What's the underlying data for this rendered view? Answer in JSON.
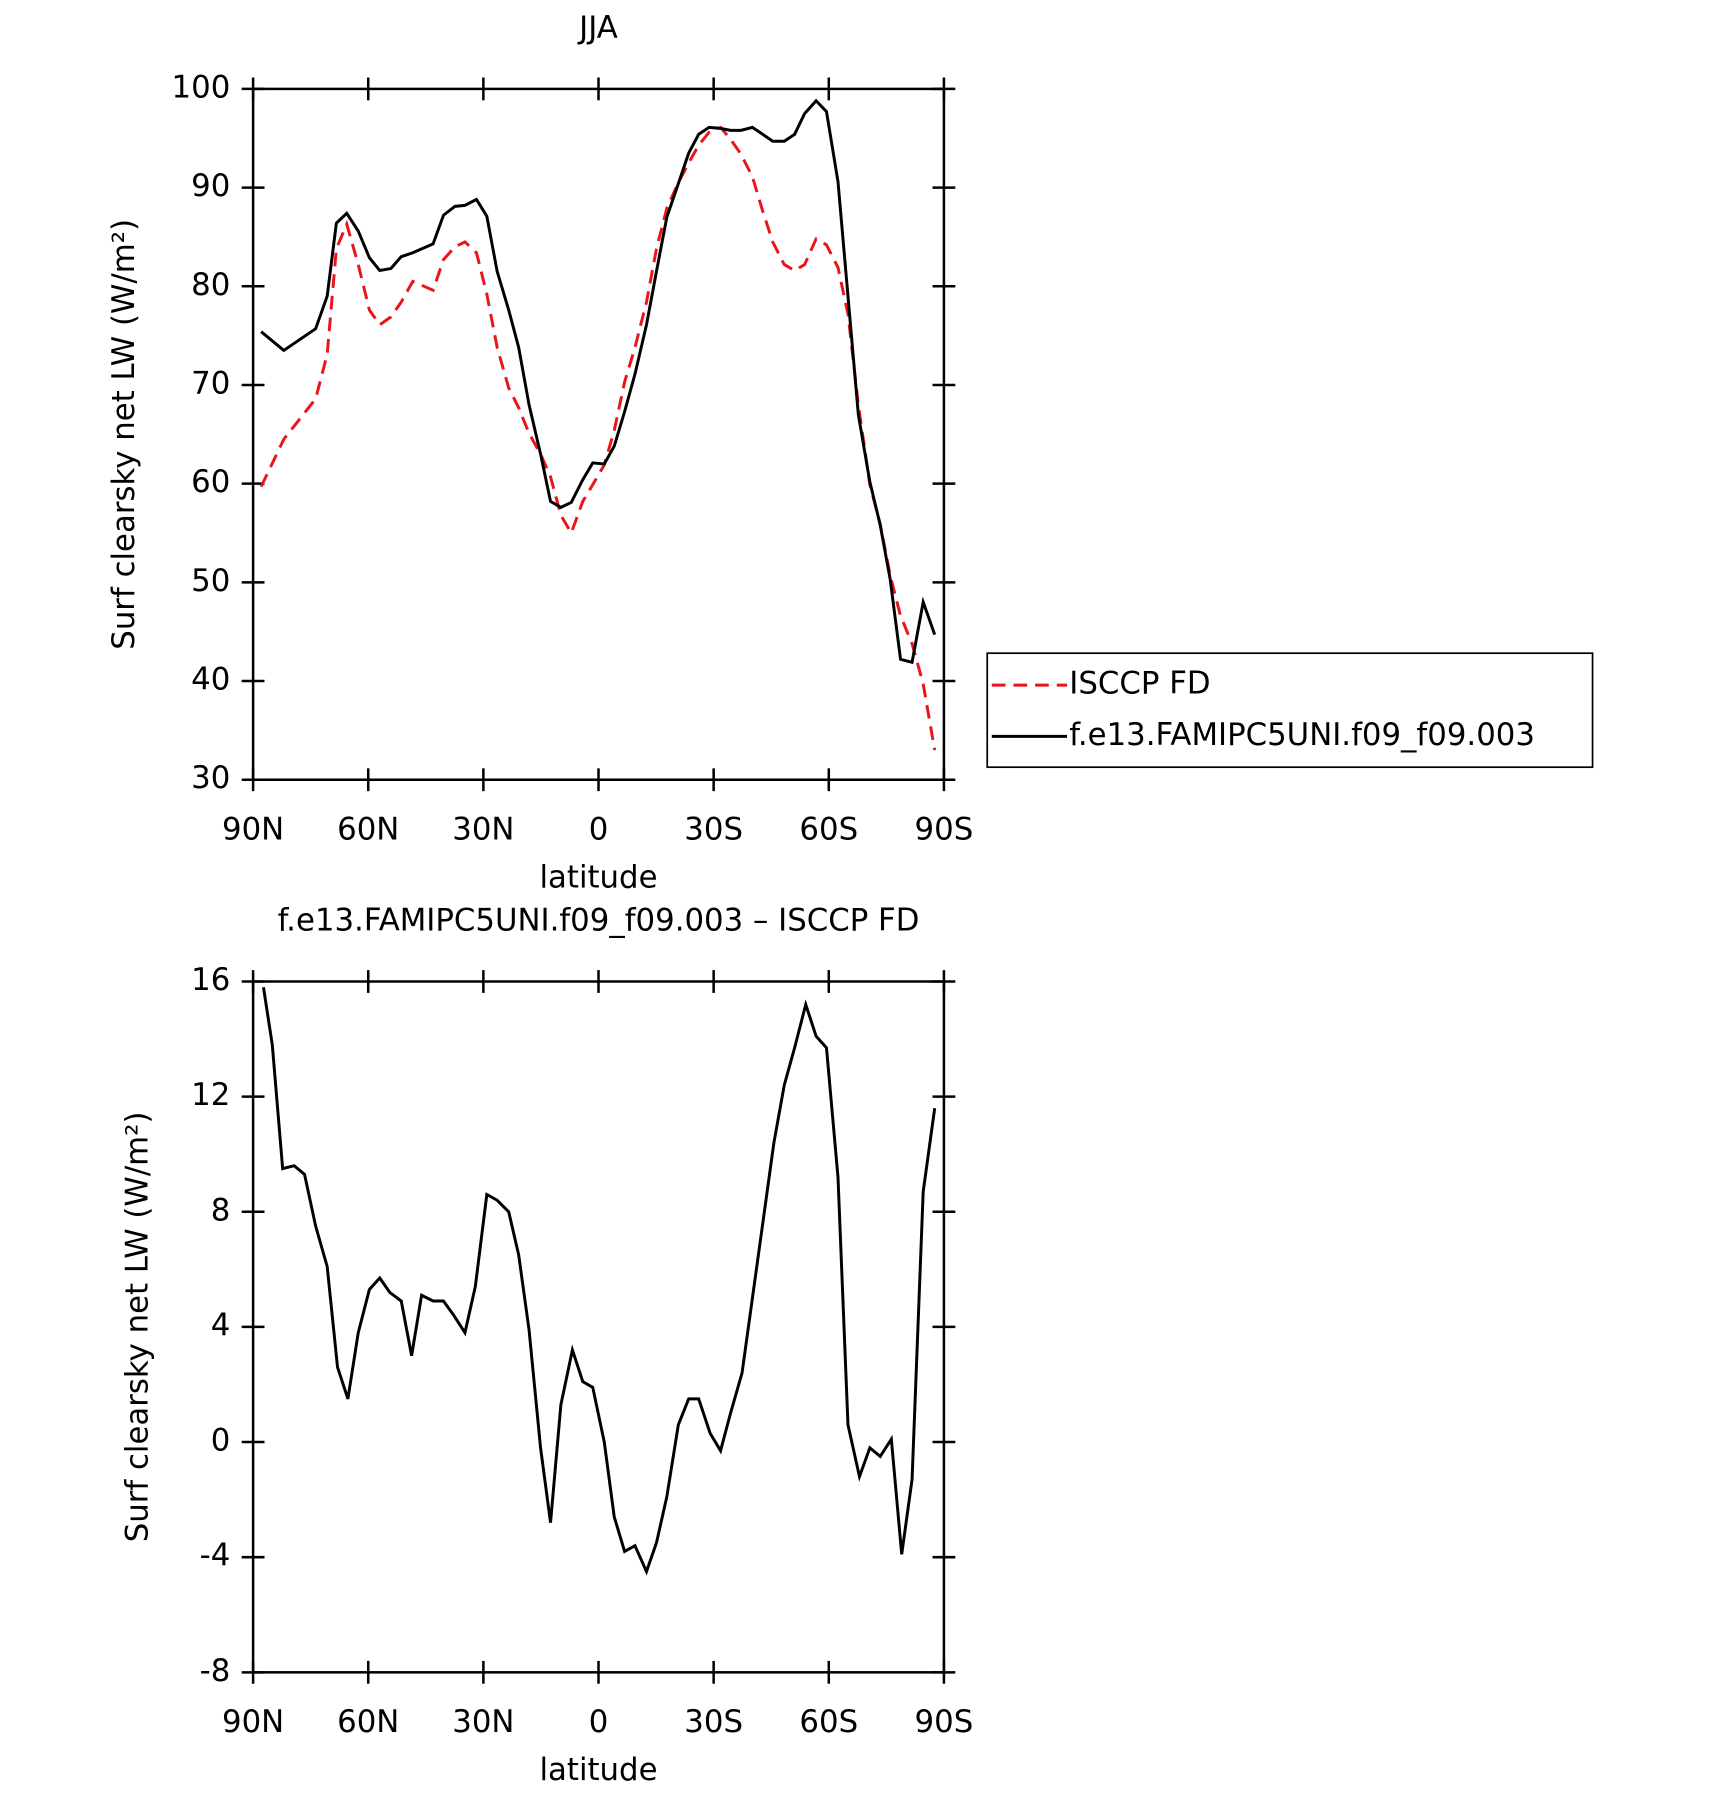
{
  "chart_data": [
    {
      "type": "line",
      "title": "JJA",
      "x_label": "latitude",
      "y_label": "Surf clearsky net LW (W/m²)",
      "x": [
        87.9,
        82,
        73.7,
        70.7,
        68.3,
        65.6,
        62.6,
        59.7,
        57.0,
        54.1,
        51.4,
        48.4,
        43.1,
        40.4,
        37.4,
        34.8,
        31.8,
        29.1,
        26.4,
        23.4,
        20.8,
        18.1,
        15.1,
        12.5,
        9.8,
        7.1,
        4.1,
        1.5,
        -1.5,
        -4.1,
        -6.8,
        -9.5,
        -12.5,
        -15.1,
        -17.8,
        -20.8,
        -23.5,
        -26.1,
        -28.8,
        -31.8,
        -34.4,
        -37.1,
        -40.1,
        -42.8,
        -45.4,
        -48.4,
        -51.1,
        -53.7,
        -56.7,
        -59.4,
        -62.4,
        -65.0,
        -67.7,
        -70.7,
        -73.4,
        -76.0,
        -78.7,
        -81.7,
        -84.6,
        -87.6
      ],
      "xlim": [
        90,
        -90
      ],
      "xticks": [
        {
          "value": 90,
          "label": "90N"
        },
        {
          "value": 60,
          "label": "60N"
        },
        {
          "value": 30,
          "label": "30N"
        },
        0,
        {
          "value": -30,
          "label": "30S"
        },
        {
          "value": -60,
          "label": "60S"
        },
        {
          "value": -90,
          "label": "90S"
        }
      ],
      "ylim": [
        30,
        100
      ],
      "yticks": [
        30,
        40,
        50,
        60,
        70,
        80,
        90,
        100
      ],
      "legend": "right",
      "series": [
        {
          "name": "ISCCP FD",
          "color": "#e8161b",
          "dash": "dashed",
          "values": [
            59.7,
            64.5,
            68.6,
            73.1,
            83.8,
            86.3,
            82.2,
            77.6,
            76.1,
            76.9,
            78.4,
            80.5,
            79.6,
            82.7,
            84.0,
            84.5,
            83.4,
            79.2,
            73.8,
            69.7,
            67.7,
            65.1,
            63.0,
            60.7,
            56.8,
            55.0,
            58.2,
            59.9,
            61.9,
            65.4,
            70.3,
            73.8,
            78.4,
            83.8,
            87.9,
            90.5,
            92.5,
            94.3,
            95.6,
            96.1,
            94.9,
            93.4,
            91.1,
            87.6,
            84.5,
            82.2,
            81.6,
            82.2,
            84.8,
            84.2,
            81.9,
            77.2,
            68.0,
            59.9,
            55.9,
            50.7,
            46.6,
            43.8,
            39.7,
            33.0
          ]
        },
        {
          "name": "f.e13.FAMIPC5UNI.f09_f09.003",
          "color": "#000000",
          "dash": "solid",
          "values": [
            75.4,
            73.5,
            75.7,
            79.0,
            86.4,
            87.4,
            85.6,
            82.9,
            81.6,
            81.8,
            83.0,
            83.4,
            84.3,
            87.2,
            88.1,
            88.2,
            88.8,
            87.1,
            81.5,
            77.6,
            73.8,
            68.0,
            63.0,
            58.2,
            57.6,
            58.1,
            60.4,
            62.1,
            62.0,
            63.8,
            67.3,
            71.1,
            76.1,
            81.5,
            87.0,
            90.4,
            93.5,
            95.4,
            96.1,
            96.0,
            95.8,
            95.8,
            96.1,
            95.4,
            94.7,
            94.7,
            95.4,
            97.5,
            98.8,
            97.7,
            90.6,
            79.0,
            67.0,
            60.2,
            55.8,
            50.3,
            42.2,
            41.9,
            48.0,
            44.7
          ]
        }
      ]
    },
    {
      "type": "line",
      "title": "f.e13.FAMIPC5UNI.f09_f09.003 – ISCCP FD",
      "x_label": "latitude",
      "y_label": "Surf clearsky net LW (W/m²)",
      "x": [
        87.3,
        85.0,
        82.3,
        79.3,
        76.6,
        73.7,
        70.7,
        68.0,
        65.3,
        62.6,
        59.7,
        57.0,
        54.4,
        51.4,
        48.7,
        46.1,
        43.1,
        40.4,
        37.7,
        34.8,
        32.1,
        29.1,
        26.4,
        23.4,
        20.8,
        18.1,
        15.1,
        12.5,
        9.8,
        6.8,
        4.1,
        1.5,
        -1.5,
        -4.1,
        -6.8,
        -9.5,
        -12.5,
        -15.1,
        -17.8,
        -20.8,
        -23.5,
        -26.1,
        -29.1,
        -31.8,
        -34.4,
        -37.4,
        -40.1,
        -42.8,
        -45.7,
        -48.4,
        -51.1,
        -54.0,
        -56.7,
        -59.4,
        -62.4,
        -65.0,
        -68.0,
        -70.7,
        -73.4,
        -76.3,
        -79.0,
        -81.7,
        -84.6,
        -87.6
      ],
      "xlim": [
        90,
        -90
      ],
      "xticks": [
        {
          "value": 90,
          "label": "90N"
        },
        {
          "value": 60,
          "label": "60N"
        },
        {
          "value": 30,
          "label": "30N"
        },
        0,
        {
          "value": -30,
          "label": "30S"
        },
        {
          "value": -60,
          "label": "60S"
        },
        {
          "value": -90,
          "label": "90S"
        }
      ],
      "ylim": [
        -8,
        16
      ],
      "yticks": [
        -8,
        -4,
        0,
        4,
        8,
        12,
        16
      ],
      "color": "#000000",
      "values": [
        15.8,
        13.8,
        9.5,
        9.6,
        9.3,
        7.5,
        6.1,
        2.6,
        1.5,
        3.8,
        5.3,
        5.7,
        5.2,
        4.9,
        3.0,
        5.1,
        4.9,
        4.9,
        4.4,
        3.8,
        5.4,
        8.6,
        8.4,
        8.0,
        6.5,
        3.9,
        -0.2,
        -2.8,
        1.3,
        3.2,
        2.1,
        1.9,
        0.0,
        -2.6,
        -3.8,
        -3.6,
        -4.5,
        -3.5,
        -1.9,
        0.6,
        1.5,
        1.5,
        0.3,
        -0.3,
        1.0,
        2.4,
        5.0,
        7.6,
        10.4,
        12.4,
        13.7,
        15.2,
        14.1,
        13.7,
        9.2,
        0.6,
        -1.2,
        -0.2,
        -0.5,
        0.1,
        -3.9,
        -1.3,
        8.7,
        11.6
      ]
    }
  ]
}
